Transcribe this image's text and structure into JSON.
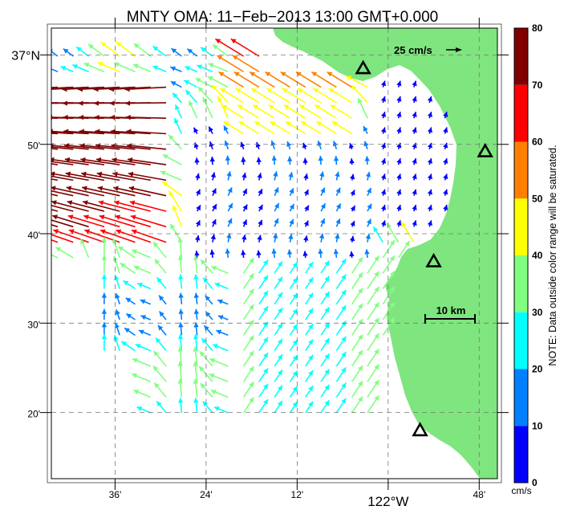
{
  "title": "MNTY OMA: 11−Feb−2013 13:00 GMT+0.000",
  "map": {
    "lat_labels": [
      {
        "text": "37°N",
        "lat": 37.0,
        "big": true
      },
      {
        "text": "50'",
        "lat": 36.8333
      },
      {
        "text": "40'",
        "lat": 36.6667
      },
      {
        "text": "30'",
        "lat": 36.5
      },
      {
        "text": "20'",
        "lat": 36.3333
      }
    ],
    "lon_labels": [
      {
        "text": "36'",
        "lon": -122.6
      },
      {
        "text": "24'",
        "lon": -122.4
      },
      {
        "text": "12'",
        "lon": -122.2
      },
      {
        "text": "122°W",
        "lon": -122.0,
        "big": true
      },
      {
        "text": "48'",
        "lon": -121.8
      }
    ],
    "lon_range": [
      -122.74,
      -121.76
    ],
    "lat_range": [
      36.21,
      37.05
    ],
    "scale_vector": "25 cm/s",
    "scale_bar": "10 km",
    "stations": [
      {
        "name": "station-1",
        "lon": -122.055,
        "lat": 36.975
      },
      {
        "name": "station-2",
        "lon": -121.787,
        "lat": 36.82
      },
      {
        "name": "station-3",
        "lon": -121.9,
        "lat": 36.615
      },
      {
        "name": "station-4",
        "lon": -121.93,
        "lat": 36.3
      }
    ],
    "land_color": "#7fe57f"
  },
  "colorbar": {
    "ticks": [
      0,
      10,
      20,
      30,
      40,
      50,
      60,
      70,
      80
    ],
    "colors": [
      "#0000ff",
      "#0080ff",
      "#00ffff",
      "#80ff80",
      "#ffff00",
      "#ff8000",
      "#ff0000",
      "#800000"
    ],
    "unit": "cm/s",
    "note": "NOTE: Data outside color range will be saturated."
  }
}
